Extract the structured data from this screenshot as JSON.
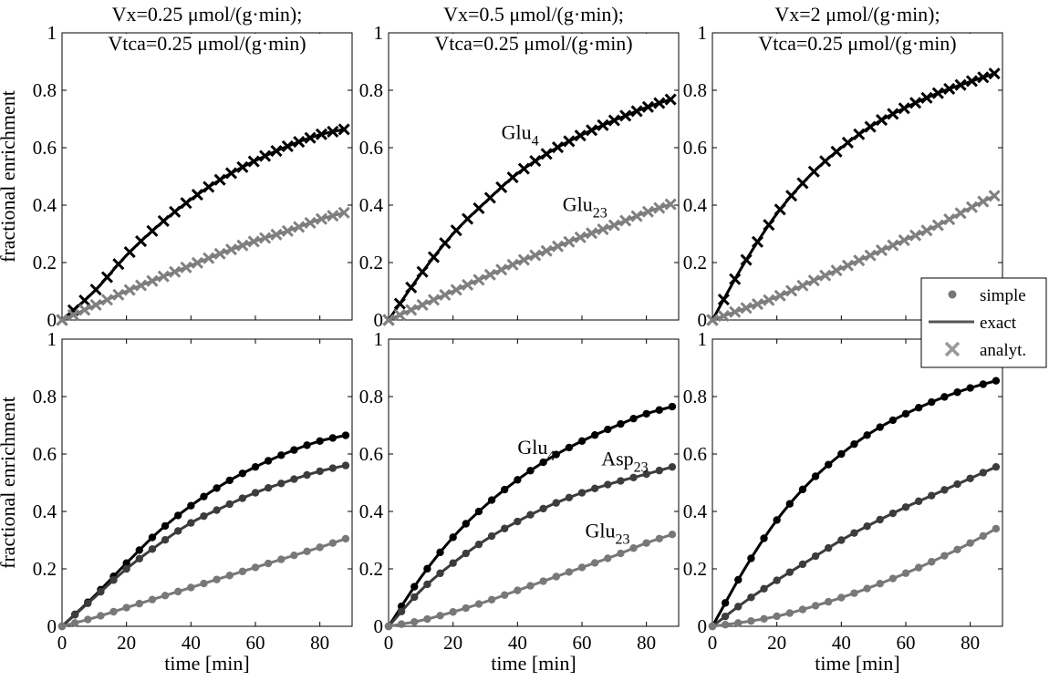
{
  "colors": {
    "glu4": "#000000",
    "asp23": "#3c3c3c",
    "glu23": "#787878",
    "glu23_analyt": "#808080",
    "legend_simple": "#777777",
    "legend_exact": "#555555",
    "legend_analyt": "#999999"
  },
  "legend": {
    "entries": [
      "simple",
      "exact",
      "analyt."
    ]
  },
  "chart_data": [
    {
      "type": "line",
      "row": 0,
      "col": 0,
      "title_lines": [
        "Vx=0.25  μmol/(g·min);",
        "Vtca=0.25  μmol/(g·min)"
      ],
      "xlabel": "",
      "ylabel": "fractional enrichment",
      "xlim": [
        0,
        90
      ],
      "ylim": [
        0,
        1
      ],
      "xticks": [
        "0",
        "20",
        "40",
        "60",
        "80"
      ],
      "yticks": [
        "0",
        "0.2",
        "0.4",
        "0.6",
        "0.8",
        "1"
      ],
      "series": [
        {
          "name": "Glu4",
          "kind": "exact+analyt",
          "x": [
            0,
            10,
            20,
            30,
            40,
            50,
            60,
            70,
            80,
            88
          ],
          "y": [
            0.0,
            0.1,
            0.225,
            0.33,
            0.42,
            0.495,
            0.555,
            0.605,
            0.645,
            0.665
          ]
        },
        {
          "name": "Glu23",
          "kind": "exact+analyt",
          "x": [
            0,
            10,
            20,
            30,
            40,
            50,
            60,
            70,
            80,
            88
          ],
          "y": [
            0.0,
            0.05,
            0.1,
            0.145,
            0.19,
            0.235,
            0.275,
            0.31,
            0.35,
            0.375
          ]
        }
      ],
      "annotations": []
    },
    {
      "type": "line",
      "row": 0,
      "col": 1,
      "title_lines": [
        "Vx=0.5  μmol/(g·min);",
        "Vtca=0.25  μmol/(g·min)"
      ],
      "xlabel": "",
      "ylabel": "",
      "xlim": [
        0,
        90
      ],
      "ylim": [
        0,
        1
      ],
      "xticks": [
        "0",
        "20",
        "40",
        "60",
        "80"
      ],
      "yticks": [
        "0",
        "0.2",
        "0.4",
        "0.6",
        "0.8",
        "1"
      ],
      "series": [
        {
          "name": "Glu4",
          "kind": "exact+analyt",
          "x": [
            0,
            10,
            20,
            30,
            40,
            50,
            60,
            70,
            80,
            88
          ],
          "y": [
            0.0,
            0.16,
            0.3,
            0.41,
            0.51,
            0.585,
            0.645,
            0.695,
            0.74,
            0.77
          ]
        },
        {
          "name": "Glu23",
          "kind": "exact+analyt",
          "x": [
            0,
            10,
            20,
            30,
            40,
            50,
            60,
            70,
            80,
            88
          ],
          "y": [
            0.0,
            0.05,
            0.1,
            0.15,
            0.2,
            0.245,
            0.29,
            0.33,
            0.375,
            0.405
          ]
        }
      ],
      "annotations": [
        {
          "base": "Glu",
          "sub": "4",
          "x": 35,
          "y": 0.63
        },
        {
          "base": "Glu",
          "sub": "23",
          "x": 54,
          "y": 0.38
        }
      ]
    },
    {
      "type": "line",
      "row": 0,
      "col": 2,
      "title_lines": [
        "Vx=2  μmol/(g·min);",
        "Vtca=0.25  μmol/(g·min)"
      ],
      "xlabel": "",
      "ylabel": "",
      "xlim": [
        0,
        90
      ],
      "ylim": [
        0,
        1
      ],
      "xticks": [
        "0",
        "20",
        "40",
        "60",
        "80"
      ],
      "yticks": [
        "0",
        "0.2",
        "0.4",
        "0.6",
        "0.8",
        "1"
      ],
      "series": [
        {
          "name": "Glu4",
          "kind": "exact+analyt",
          "x": [
            0,
            10,
            20,
            30,
            40,
            50,
            60,
            70,
            80,
            88
          ],
          "y": [
            0.0,
            0.2,
            0.37,
            0.5,
            0.6,
            0.68,
            0.74,
            0.79,
            0.83,
            0.86
          ]
        },
        {
          "name": "Glu23",
          "kind": "exact+analyt",
          "x": [
            0,
            10,
            20,
            30,
            40,
            50,
            60,
            70,
            80,
            88
          ],
          "y": [
            0.0,
            0.04,
            0.08,
            0.13,
            0.18,
            0.23,
            0.28,
            0.33,
            0.39,
            0.435
          ]
        }
      ],
      "annotations": []
    },
    {
      "type": "line",
      "row": 1,
      "col": 0,
      "title_lines": [],
      "xlabel": "time [min]",
      "ylabel": "fractional enrichment",
      "xlim": [
        0,
        90
      ],
      "ylim": [
        0,
        1
      ],
      "xticks": [
        "0",
        "20",
        "40",
        "60",
        "80"
      ],
      "yticks": [
        "0",
        "0.2",
        "0.4",
        "0.6",
        "0.8",
        "1"
      ],
      "series": [
        {
          "name": "Glu4",
          "kind": "exact+simple",
          "x": [
            0,
            10,
            20,
            30,
            40,
            50,
            60,
            70,
            80,
            88
          ],
          "y": [
            0.0,
            0.105,
            0.22,
            0.33,
            0.42,
            0.495,
            0.555,
            0.605,
            0.645,
            0.665
          ]
        },
        {
          "name": "Asp23",
          "kind": "exact+simple",
          "x": [
            0,
            10,
            20,
            30,
            40,
            50,
            60,
            70,
            80,
            88
          ],
          "y": [
            0.0,
            0.1,
            0.2,
            0.285,
            0.36,
            0.415,
            0.465,
            0.505,
            0.54,
            0.56
          ]
        },
        {
          "name": "Glu23",
          "kind": "exact+simple",
          "x": [
            0,
            10,
            20,
            30,
            40,
            50,
            60,
            70,
            80,
            88
          ],
          "y": [
            0.0,
            0.03,
            0.065,
            0.1,
            0.135,
            0.17,
            0.205,
            0.24,
            0.275,
            0.305
          ]
        }
      ],
      "annotations": []
    },
    {
      "type": "line",
      "row": 1,
      "col": 1,
      "title_lines": [],
      "xlabel": "time [min]",
      "ylabel": "",
      "xlim": [
        0,
        90
      ],
      "ylim": [
        0,
        1
      ],
      "xticks": [
        "0",
        "20",
        "40",
        "60",
        "80"
      ],
      "yticks": [
        "0",
        "0.2",
        "0.4",
        "0.6",
        "0.8",
        "1"
      ],
      "series": [
        {
          "name": "Glu4",
          "kind": "exact+simple",
          "x": [
            0,
            10,
            20,
            30,
            40,
            50,
            60,
            70,
            80,
            88
          ],
          "y": [
            0.0,
            0.17,
            0.31,
            0.42,
            0.51,
            0.585,
            0.645,
            0.695,
            0.74,
            0.765
          ]
        },
        {
          "name": "Asp23",
          "kind": "exact+simple",
          "x": [
            0,
            10,
            20,
            30,
            40,
            50,
            60,
            70,
            80,
            88
          ],
          "y": [
            0.0,
            0.125,
            0.22,
            0.3,
            0.365,
            0.42,
            0.465,
            0.5,
            0.53,
            0.555
          ]
        },
        {
          "name": "Glu23",
          "kind": "exact+simple",
          "x": [
            0,
            10,
            20,
            30,
            40,
            50,
            60,
            70,
            80,
            88
          ],
          "y": [
            0.0,
            0.02,
            0.05,
            0.085,
            0.125,
            0.165,
            0.205,
            0.245,
            0.29,
            0.32
          ]
        }
      ],
      "annotations": [
        {
          "base": "Glu",
          "sub": "4",
          "x": 40,
          "y": 0.6
        },
        {
          "base": "Asp",
          "sub": "23",
          "x": 66,
          "y": 0.56
        },
        {
          "base": "Glu",
          "sub": "23",
          "x": 61,
          "y": 0.31
        }
      ]
    },
    {
      "type": "line",
      "row": 1,
      "col": 2,
      "title_lines": [],
      "xlabel": "time [min]",
      "ylabel": "",
      "xlim": [
        0,
        90
      ],
      "ylim": [
        0,
        1
      ],
      "xticks": [
        "0",
        "20",
        "40",
        "60",
        "80"
      ],
      "yticks": [
        "0",
        "0.2",
        "0.4",
        "0.6",
        "0.8",
        "1"
      ],
      "series": [
        {
          "name": "Glu4",
          "kind": "exact+simple",
          "x": [
            0,
            10,
            20,
            30,
            40,
            50,
            60,
            70,
            80,
            88
          ],
          "y": [
            0.0,
            0.2,
            0.37,
            0.5,
            0.6,
            0.68,
            0.74,
            0.79,
            0.83,
            0.855
          ]
        },
        {
          "name": "Asp23",
          "kind": "exact+simple",
          "x": [
            0,
            10,
            20,
            30,
            40,
            50,
            60,
            70,
            80,
            88
          ],
          "y": [
            0.0,
            0.085,
            0.16,
            0.23,
            0.3,
            0.36,
            0.415,
            0.465,
            0.515,
            0.555
          ]
        },
        {
          "name": "Glu23",
          "kind": "exact+simple",
          "x": [
            0,
            10,
            20,
            30,
            40,
            50,
            60,
            70,
            80,
            88
          ],
          "y": [
            0.0,
            0.015,
            0.035,
            0.065,
            0.1,
            0.14,
            0.185,
            0.235,
            0.29,
            0.34
          ]
        }
      ],
      "annotations": []
    }
  ]
}
